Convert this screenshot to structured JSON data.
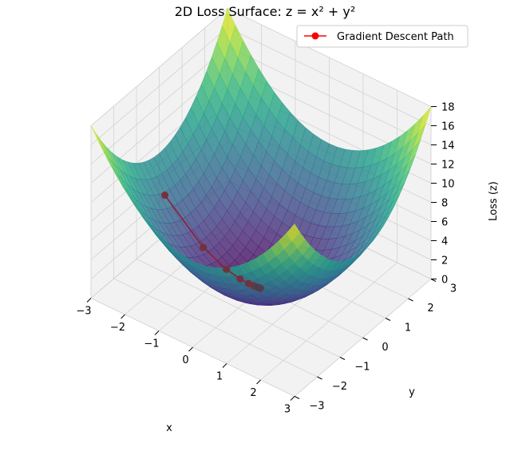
{
  "chart_data": {
    "type": "surface3d",
    "title": "2D Loss Surface: z = x² + y²",
    "xlabel": "x",
    "ylabel": "y",
    "zlabel": "Loss (z)",
    "xlim": [
      -3,
      3
    ],
    "ylim": [
      -3,
      3
    ],
    "zlim": [
      0,
      18
    ],
    "xticks": [
      -3,
      -2,
      -1,
      0,
      1,
      2,
      3
    ],
    "yticks": [
      -3,
      -2,
      -1,
      0,
      1,
      2,
      3
    ],
    "zticks": [
      0,
      2,
      4,
      6,
      8,
      10,
      12,
      14,
      16,
      18
    ],
    "xtick_labels": [
      "−3",
      "−2",
      "−1",
      "0",
      "1",
      "2",
      "3"
    ],
    "ytick_labels": [
      "−3",
      "−2",
      "−1",
      "0",
      "1",
      "2",
      "3"
    ],
    "colormap": "viridis",
    "surface_alpha": 0.8,
    "grid": true,
    "legend": {
      "location": "top-right",
      "entries": [
        {
          "label": "Gradient Descent Path",
          "color": "#ff0000"
        }
      ]
    },
    "series": [
      {
        "name": "Gradient Descent Path",
        "color": "#ff0000",
        "x": [
          -2.5,
          -1.5,
          -0.9,
          -0.54,
          -0.324,
          -0.194,
          -0.117,
          -0.07,
          -0.042,
          -0.025,
          -0.015
        ],
        "y": [
          -0.5,
          -0.3,
          -0.18,
          -0.108,
          -0.065,
          -0.039,
          -0.023,
          -0.014,
          -0.008,
          -0.005,
          -0.003
        ],
        "z": [
          6.5,
          2.34,
          0.842,
          0.303,
          0.109,
          0.039,
          0.014,
          0.005,
          0.002,
          0.001,
          0.0
        ]
      }
    ]
  }
}
